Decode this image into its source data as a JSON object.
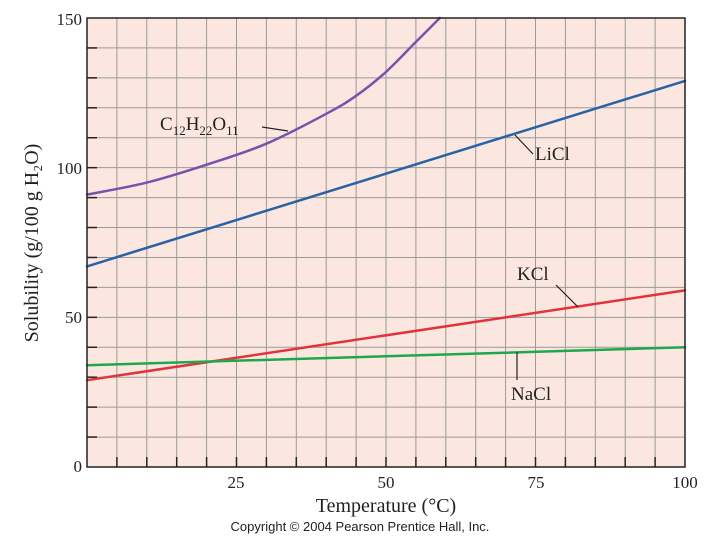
{
  "chart_data": {
    "type": "line",
    "xlabel": "Temperature (°C)",
    "ylabel": "Solubility (g/100 g H₂O)",
    "xlim": [
      0,
      100
    ],
    "ylim": [
      0,
      150
    ],
    "x_ticks": [
      25,
      50,
      75,
      100
    ],
    "y_ticks": [
      0,
      50,
      100,
      150
    ],
    "grid": true,
    "series": [
      {
        "name": "C12H22O11",
        "label": {
          "base": "C",
          "n1": "12",
          "h": "H",
          "n2": "22",
          "o": "O",
          "n3": "11"
        },
        "color": "#7b52ab",
        "x": [
          0,
          10,
          20,
          30,
          40,
          45,
          50,
          55,
          58,
          59
        ],
        "y": [
          91,
          95,
          101,
          108,
          118,
          124,
          132,
          142,
          148,
          150
        ]
      },
      {
        "name": "LiCl",
        "label_text": "LiCl",
        "color": "#2a62a8",
        "x": [
          0,
          100
        ],
        "y": [
          67,
          129
        ]
      },
      {
        "name": "KCl",
        "label_text": "KCl",
        "color": "#e0343a",
        "x": [
          0,
          100
        ],
        "y": [
          29,
          59
        ]
      },
      {
        "name": "NaCl",
        "label_text": "NaCl",
        "color": "#1ea84d",
        "x": [
          0,
          100
        ],
        "y": [
          34,
          40
        ]
      }
    ]
  },
  "copyright": "Copyright © 2004 Pearson Prentice Hall, Inc.",
  "colors": {
    "plot_bg": "#fbe7df",
    "grid": "#9a9a9a"
  }
}
